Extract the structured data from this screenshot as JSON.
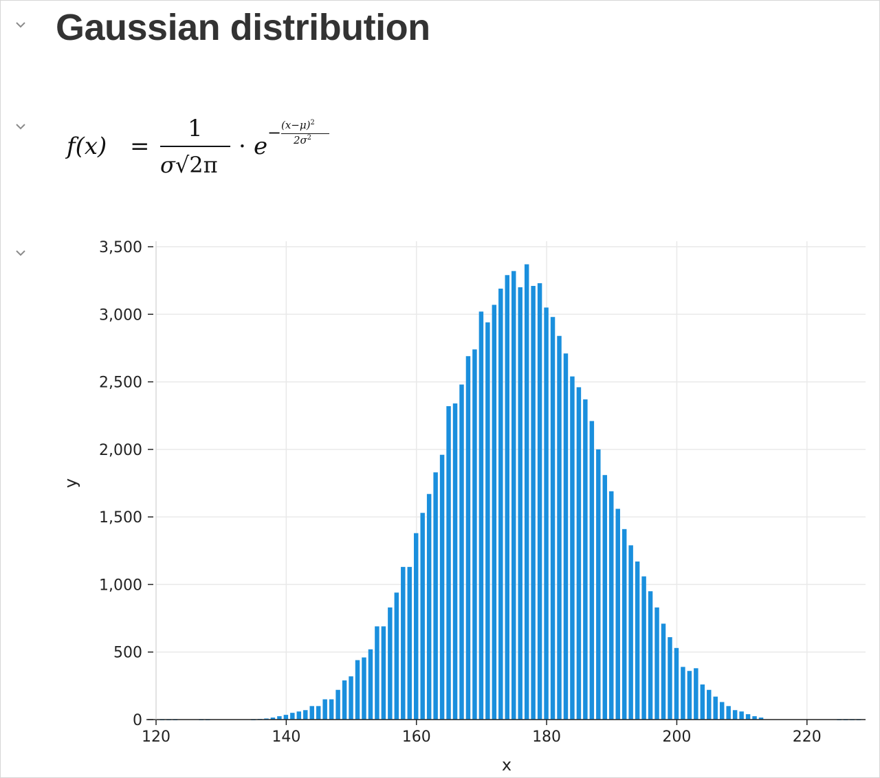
{
  "cells": {
    "heading": "Gaussian distribution",
    "formula": {
      "lhs_f": "f",
      "lhs_paren": "(x)",
      "equals": "=",
      "numerator": "1",
      "denominator_sigma": "σ",
      "denominator_rest": "√2π",
      "dot": "·",
      "e": "e",
      "exp_minus": "−",
      "exp_numerator": "(x−μ)",
      "exp_numerator_pow": "2",
      "exp_denominator": "2σ",
      "exp_denominator_pow": "2"
    }
  },
  "icons": {
    "collapse": "chevron-down-icon"
  },
  "colors": {
    "bar": "#1a8fdd",
    "grid": "#e9e9e9",
    "heading": "#333333"
  },
  "chart_data": {
    "type": "bar",
    "xlabel": "x",
    "ylabel": "y",
    "xlim": [
      120,
      229
    ],
    "ylim": [
      0,
      3500
    ],
    "xticks": [
      120,
      140,
      160,
      180,
      200,
      220
    ],
    "yticks": [
      0,
      500,
      1000,
      1500,
      2000,
      2500,
      3000,
      3500
    ],
    "xtick_labels": [
      "120",
      "140",
      "160",
      "180",
      "200",
      "220"
    ],
    "ytick_labels": [
      "0",
      "500",
      "1,000",
      "1,500",
      "2,000",
      "2,500",
      "3,000",
      "3,500"
    ],
    "grid": true,
    "bin_width": 1,
    "x": [
      121,
      122,
      123,
      127,
      128,
      135,
      136,
      137,
      138,
      139,
      140,
      141,
      142,
      143,
      144,
      145,
      146,
      147,
      148,
      149,
      150,
      151,
      152,
      153,
      154,
      155,
      156,
      157,
      158,
      159,
      160,
      161,
      162,
      163,
      164,
      165,
      166,
      167,
      168,
      169,
      170,
      171,
      172,
      173,
      174,
      175,
      176,
      177,
      178,
      179,
      180,
      181,
      182,
      183,
      184,
      185,
      186,
      187,
      188,
      189,
      190,
      191,
      192,
      193,
      194,
      195,
      196,
      197,
      198,
      199,
      200,
      201,
      202,
      203,
      204,
      205,
      206,
      207,
      208,
      209,
      210,
      211,
      212,
      213,
      225,
      226,
      227,
      228
    ],
    "values": [
      3,
      3,
      3,
      3,
      3,
      3,
      5,
      8,
      15,
      25,
      35,
      50,
      60,
      70,
      100,
      100,
      150,
      150,
      220,
      290,
      320,
      440,
      460,
      520,
      690,
      690,
      830,
      940,
      1130,
      1130,
      1380,
      1530,
      1670,
      1830,
      1960,
      2320,
      2340,
      2480,
      2690,
      2740,
      3020,
      2940,
      3070,
      3190,
      3290,
      3320,
      3200,
      3370,
      3210,
      3230,
      3050,
      2980,
      2840,
      2710,
      2540,
      2460,
      2370,
      2210,
      2000,
      1810,
      1690,
      1560,
      1410,
      1290,
      1170,
      1060,
      950,
      830,
      710,
      610,
      530,
      390,
      360,
      380,
      260,
      220,
      170,
      130,
      100,
      70,
      60,
      40,
      25,
      15,
      3,
      3,
      3,
      3
    ]
  }
}
